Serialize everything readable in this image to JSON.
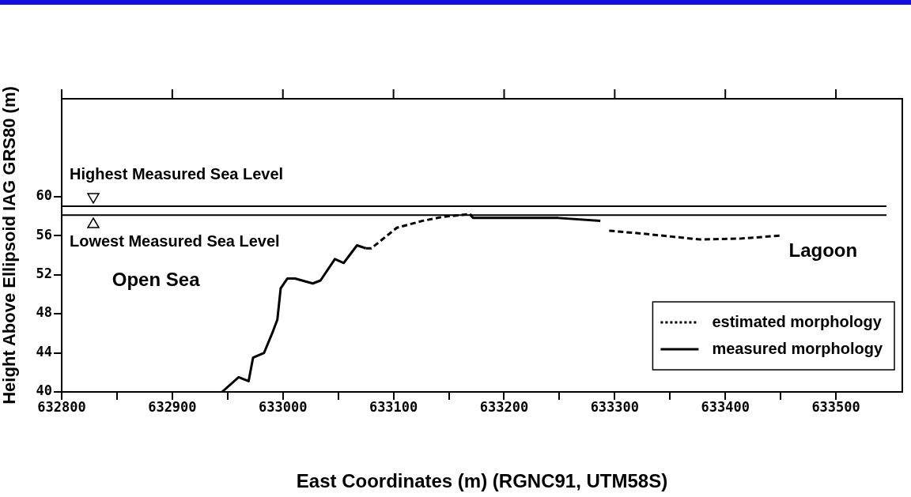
{
  "chart_data": {
    "type": "line",
    "xlabel": "East Coordinates (m) (RGNC91, UTM58S)",
    "ylabel": "Height Above Ellipsoid IAG GRS80 (m)",
    "xlim": [
      632800,
      633560
    ],
    "ylim": [
      40,
      70
    ],
    "xticks": [
      632800,
      {
        "value": 632850,
        "label": null
      },
      632900,
      {
        "value": 632950,
        "label": null
      },
      633000,
      {
        "value": 633050,
        "label": null
      },
      633100,
      {
        "value": 633150,
        "label": null
      },
      633200,
      {
        "value": 633250,
        "label": null
      },
      633300,
      {
        "value": 633350,
        "label": null
      },
      633400,
      {
        "value": 633450,
        "label": null
      },
      633500
    ],
    "yticks": [
      40,
      44,
      48,
      52,
      56,
      60
    ],
    "grid": false,
    "legend": "bottom right",
    "marker": "none",
    "series": [
      {
        "name": "estimated morphology",
        "color": "#000000",
        "line_style": "dashed",
        "x": [
          633075,
          633080,
          633103,
          633126,
          633144,
          633169,
          633172,
          633287,
          633295,
          633325,
          633351,
          633377,
          633415,
          633450
        ],
        "values": [
          54.7,
          54.7,
          56.8,
          57.5,
          57.9,
          58.2,
          57.8,
          null,
          56.5,
          56.2,
          55.9,
          55.6,
          55.7,
          56.0
        ]
      },
      {
        "name": "measured morphology",
        "color": "#000000",
        "line_style": "solid",
        "x": [
          632945,
          632960,
          632969,
          632973,
          632983,
          632991,
          632995,
          632998,
          633004,
          633011,
          633027,
          633034,
          633047,
          633055,
          633067,
          633075,
          633120,
          633169,
          633172,
          633249,
          633287
        ],
        "values": [
          40.0,
          41.5,
          41.1,
          43.5,
          44.0,
          46.2,
          47.4,
          50.6,
          51.6,
          51.6,
          51.1,
          51.4,
          53.6,
          53.2,
          55.0,
          54.7,
          null,
          58.2,
          57.8,
          57.8,
          57.5
        ]
      }
    ],
    "ref_lines": [
      {
        "axis": "y",
        "value": 59.0,
        "label": "Highest Measured Sea Level",
        "color": "#000000"
      },
      {
        "axis": "y",
        "value": 58.1,
        "label": "Lowest Measured Sea Level",
        "color": "#000000"
      }
    ],
    "annotations": [
      "Open Sea",
      "Lagoon"
    ]
  }
}
